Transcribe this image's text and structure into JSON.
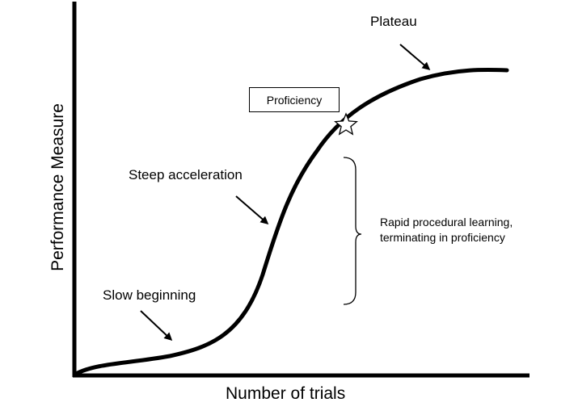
{
  "diagram": {
    "y_axis_label": "Performance Measure",
    "x_axis_label": "Number of trials",
    "annotations": {
      "plateau": "Plateau",
      "proficiency": "Proficiency",
      "steep_acceleration": "Steep acceleration",
      "slow_beginning": "Slow beginning",
      "rapid_learning": "Rapid procedural learning, terminating in proficiency"
    },
    "curve": "learning-curve",
    "marker_icon": "star-icon"
  }
}
